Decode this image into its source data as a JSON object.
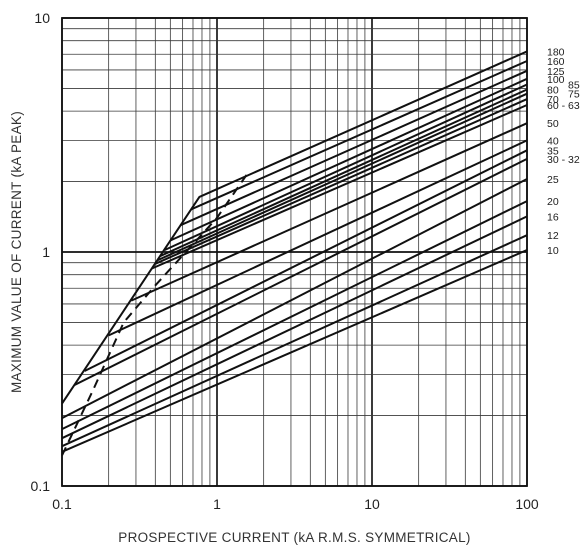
{
  "chart_data": {
    "type": "line",
    "title": "",
    "xlabel": "PROSPECTIVE CURRENT (kA  R.M.S.  SYMMETRICAL)",
    "ylabel": "MAXIMUM VALUE OF CURRENT (kA PEAK)",
    "x_scale": "log",
    "y_scale": "log",
    "xlim": [
      0.1,
      100
    ],
    "ylim": [
      0.1,
      10
    ],
    "x_ticks": [
      "0.1",
      "1",
      "10",
      "100"
    ],
    "y_ticks": [
      "0.1",
      "1",
      "10"
    ],
    "grid": true,
    "curve_labels": [
      {
        "text": "180",
        "y": 7.2
      },
      {
        "text": "160",
        "y": 6.55
      },
      {
        "text": "125",
        "y": 5.95
      },
      {
        "text": "100",
        "y": 5.5
      },
      {
        "text": "85",
        "y": 5.2
      },
      {
        "text": "80",
        "y": 4.95
      },
      {
        "text": "75",
        "y": 4.75
      },
      {
        "text": "70",
        "y": 4.5
      },
      {
        "text": "60 - 63",
        "y": 4.25
      },
      {
        "text": "50",
        "y": 3.55
      },
      {
        "text": "40",
        "y": 3.0
      },
      {
        "text": "35",
        "y": 2.72
      },
      {
        "text": "30 - 32",
        "y": 2.5
      },
      {
        "text": "25",
        "y": 2.05
      },
      {
        "text": "20",
        "y": 1.65
      },
      {
        "text": "16",
        "y": 1.42
      },
      {
        "text": "12",
        "y": 1.18
      },
      {
        "text": "10",
        "y": 1.02
      }
    ],
    "series": [
      {
        "points": [
          [
            0.1,
            0.225
          ],
          [
            0.77,
            1.72
          ],
          [
            100,
            7.2
          ]
        ]
      },
      {
        "points": [
          [
            0.68,
            1.52
          ],
          [
            100,
            6.55
          ]
        ]
      },
      {
        "points": [
          [
            0.58,
            1.3
          ],
          [
            100,
            5.95
          ]
        ]
      },
      {
        "points": [
          [
            0.5,
            1.12
          ],
          [
            100,
            5.5
          ]
        ]
      },
      {
        "points": [
          [
            0.46,
            1.02
          ],
          [
            100,
            5.2
          ]
        ]
      },
      {
        "points": [
          [
            0.43,
            0.96
          ],
          [
            100,
            4.95
          ]
        ]
      },
      {
        "points": [
          [
            0.41,
            0.92
          ],
          [
            100,
            4.75
          ]
        ]
      },
      {
        "points": [
          [
            0.4,
            0.89
          ],
          [
            100,
            4.5
          ]
        ]
      },
      {
        "points": [
          [
            0.38,
            0.85
          ],
          [
            100,
            4.25
          ]
        ]
      },
      {
        "points": [
          [
            0.28,
            0.62
          ],
          [
            100,
            3.55
          ]
        ]
      },
      {
        "points": [
          [
            0.2,
            0.44
          ],
          [
            100,
            3.0
          ]
        ]
      },
      {
        "points": [
          [
            0.14,
            0.31
          ],
          [
            100,
            2.72
          ]
        ]
      },
      {
        "points": [
          [
            0.12,
            0.27
          ],
          [
            100,
            2.5
          ]
        ]
      },
      {
        "points": [
          [
            0.1,
            0.195
          ],
          [
            100,
            2.05
          ]
        ]
      },
      {
        "points": [
          [
            0.1,
            0.175
          ],
          [
            100,
            1.65
          ]
        ]
      },
      {
        "points": [
          [
            0.1,
            0.16
          ],
          [
            100,
            1.42
          ]
        ]
      },
      {
        "points": [
          [
            0.1,
            0.148
          ],
          [
            100,
            1.18
          ]
        ]
      },
      {
        "points": [
          [
            0.1,
            0.14
          ],
          [
            100,
            1.02
          ]
        ]
      }
    ],
    "dashed_line": {
      "points": [
        [
          0.1,
          0.135
        ],
        [
          0.16,
          0.26
        ],
        [
          0.25,
          0.5
        ],
        [
          0.4,
          0.72
        ],
        [
          0.7,
          1.08
        ],
        [
          1.0,
          1.4
        ],
        [
          1.6,
          2.2
        ]
      ]
    }
  }
}
